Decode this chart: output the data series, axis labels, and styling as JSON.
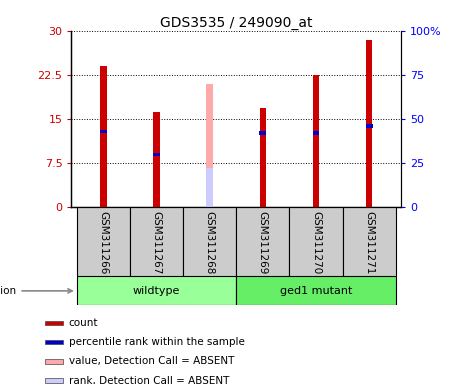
{
  "title": "GDS3535 / 249090_at",
  "samples": [
    "GSM311266",
    "GSM311267",
    "GSM311268",
    "GSM311269",
    "GSM311270",
    "GSM311271"
  ],
  "count_values": [
    24.0,
    16.2,
    null,
    16.8,
    22.5,
    28.5
  ],
  "percentile_values": [
    43.0,
    30.0,
    null,
    42.0,
    42.0,
    46.0
  ],
  "absent_value_bar": [
    null,
    null,
    21.0,
    null,
    null,
    null
  ],
  "absent_rank_bar": [
    null,
    null,
    22.0,
    null,
    null,
    null
  ],
  "bar_width": 0.12,
  "ylim_left": [
    0,
    30
  ],
  "ylim_right": [
    0,
    100
  ],
  "yticks_left": [
    0,
    7.5,
    15,
    22.5,
    30
  ],
  "yticks_right": [
    0,
    25,
    50,
    75,
    100
  ],
  "yticklabels_left": [
    "0",
    "7.5",
    "15",
    "22.5",
    "30"
  ],
  "yticklabels_right": [
    "0",
    "25",
    "50",
    "75",
    "100%"
  ],
  "color_count": "#cc0000",
  "color_percentile": "#0000cc",
  "color_absent_value": "#ffaaaa",
  "color_absent_rank": "#ccccff",
  "groups": [
    {
      "label": "wildtype",
      "indices": [
        0,
        1,
        2
      ],
      "color": "#99ff99"
    },
    {
      "label": "ged1 mutant",
      "indices": [
        3,
        4,
        5
      ],
      "color": "#66ee66"
    }
  ],
  "legend_items": [
    {
      "label": "count",
      "color": "#cc0000"
    },
    {
      "label": "percentile rank within the sample",
      "color": "#0000cc"
    },
    {
      "label": "value, Detection Call = ABSENT",
      "color": "#ffaaaa"
    },
    {
      "label": "rank, Detection Call = ABSENT",
      "color": "#ccccff"
    }
  ],
  "plot_bg": "#ffffff",
  "sample_area_bg": "#cccccc"
}
